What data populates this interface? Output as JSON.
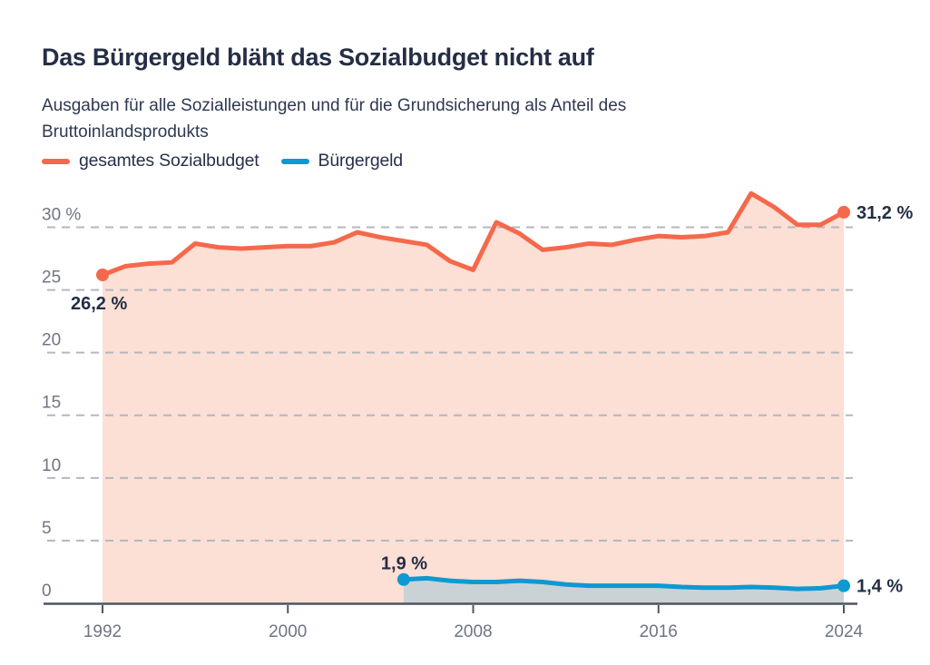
{
  "header": {
    "title": "Das Bürgergeld bläht das Sozialbudget nicht auf",
    "subtitle": "Ausgaben für alle Sozialleistungen und für die Grundsicherung als Anteil des Bruttoinlandsprodukts"
  },
  "legend": [
    {
      "label": "gesamtes Sozialbudget",
      "color": "#f4694b"
    },
    {
      "label": "Bürgergeld",
      "color": "#0d99d2"
    }
  ],
  "colors": {
    "sozialbudget_line": "#f4694b",
    "sozialbudget_fill": "#fcdfd5",
    "buergergeld_line": "#0d99d2",
    "buergergeld_fill": "#cbd2d6",
    "grid": "#b3b7bf",
    "axis": "#4d5563",
    "tick_text": "#6e7583",
    "annotation_text": "#242e45"
  },
  "chart_data": {
    "type": "area",
    "title": "Das Bürgergeld bläht das Sozialbudget nicht auf",
    "subtitle": "Ausgaben für alle Sozialleistungen und für die Grundsicherung als Anteil des Bruttoinlandsprodukts",
    "unit": "%",
    "xlim": [
      1992,
      2024
    ],
    "ylim": [
      0,
      33.5
    ],
    "grid": "horizontal-dashed",
    "legend_position": "top-left",
    "x_ticks": [
      {
        "value": 1992,
        "label": "1992"
      },
      {
        "value": 2000,
        "label": "2000"
      },
      {
        "value": 2008,
        "label": "2008"
      },
      {
        "value": 2016,
        "label": "2016"
      },
      {
        "value": 2024,
        "label": "2024"
      }
    ],
    "y_ticks": [
      {
        "value": 0,
        "label": "0"
      },
      {
        "value": 5,
        "label": "5"
      },
      {
        "value": 10,
        "label": "10"
      },
      {
        "value": 15,
        "label": "15"
      },
      {
        "value": 20,
        "label": "20"
      },
      {
        "value": 25,
        "label": "25"
      },
      {
        "value": 30,
        "label": "30 %"
      }
    ],
    "series": [
      {
        "id": "sozialbudget",
        "name": "gesamtes Sozialbudget",
        "color": "#f4694b",
        "fill": "#fcdfd5",
        "start_label": "26,2 %",
        "end_label": "31,2 %",
        "label_placement": {
          "start": "below-left",
          "end": "right"
        },
        "years": [
          1992,
          1993,
          1994,
          1995,
          1996,
          1997,
          1998,
          1999,
          2000,
          2001,
          2002,
          2003,
          2004,
          2005,
          2006,
          2007,
          2008,
          2009,
          2010,
          2011,
          2012,
          2013,
          2014,
          2015,
          2016,
          2017,
          2018,
          2019,
          2020,
          2021,
          2022,
          2023,
          2024
        ],
        "values": [
          26.2,
          26.9,
          27.1,
          27.2,
          28.7,
          28.4,
          28.3,
          28.4,
          28.5,
          28.5,
          28.8,
          29.6,
          29.2,
          28.9,
          28.6,
          27.3,
          26.6,
          30.4,
          29.5,
          28.2,
          28.4,
          28.7,
          28.6,
          29.0,
          29.3,
          29.2,
          29.3,
          29.6,
          32.7,
          31.6,
          30.2,
          30.2,
          31.2
        ]
      },
      {
        "id": "buergergeld",
        "name": "Bürgergeld",
        "color": "#0d99d2",
        "fill": "#cbd2d6",
        "start_label": "1,9 %",
        "end_label": "1,4 %",
        "label_placement": {
          "start": "above-left",
          "end": "right"
        },
        "years": [
          2005,
          2006,
          2007,
          2008,
          2009,
          2010,
          2011,
          2012,
          2013,
          2014,
          2015,
          2016,
          2017,
          2018,
          2019,
          2020,
          2021,
          2022,
          2023,
          2024
        ],
        "values": [
          1.9,
          2.0,
          1.8,
          1.7,
          1.7,
          1.8,
          1.7,
          1.5,
          1.4,
          1.4,
          1.4,
          1.4,
          1.3,
          1.25,
          1.25,
          1.3,
          1.25,
          1.15,
          1.2,
          1.4
        ]
      }
    ]
  }
}
